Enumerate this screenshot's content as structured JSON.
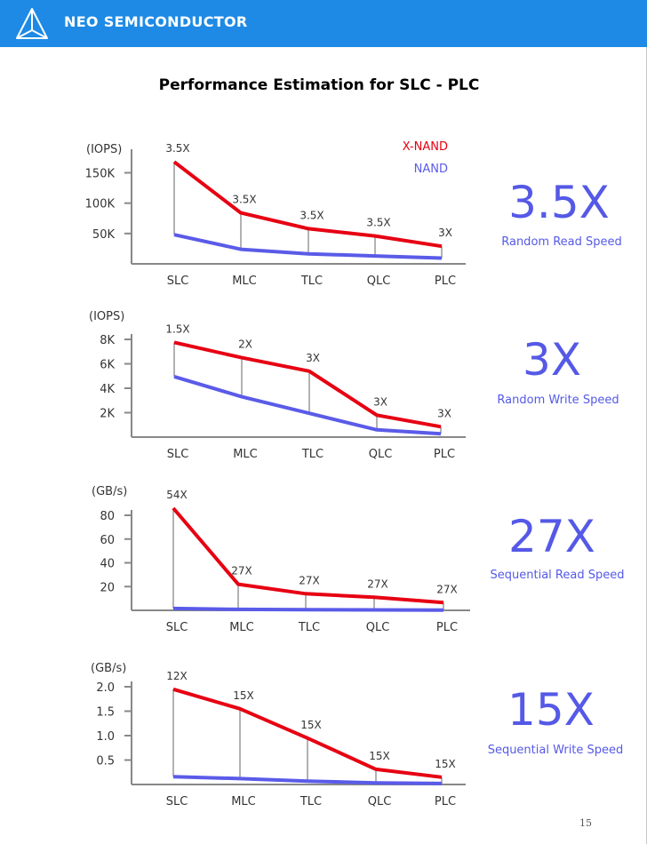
{
  "header": {
    "brand": "NEO SEMICONDUCTOR",
    "logo_icon": "pyramid-logo-icon",
    "background": "#1e8ae5"
  },
  "page_title": "Performance Estimation for SLC - PLC",
  "page_number": "15",
  "colors": {
    "xnand": "#e60012",
    "nand": "#5a5be8",
    "connector": "#999999",
    "highlight": "#5559e6"
  },
  "legend": {
    "xnand": "X-NAND",
    "nand": "NAND"
  },
  "charts": [
    {
      "factor": "3.5X",
      "metric": "Random Read Speed"
    },
    {
      "factor": "3X",
      "metric": "Random Write Speed"
    },
    {
      "factor": "27X",
      "metric": "Sequential Read Speed"
    },
    {
      "factor": "15X",
      "metric": "Sequential Write Speed"
    }
  ],
  "chart_data": [
    {
      "type": "line",
      "title": "Random Read Speed",
      "ylabel": "(IOPS)",
      "categories": [
        "SLC",
        "MLC",
        "TLC",
        "QLC",
        "PLC"
      ],
      "yticks": [
        "50K",
        "100K",
        "150K"
      ],
      "ytick_values": [
        50,
        100,
        150
      ],
      "ylim": [
        0,
        180
      ],
      "legend_position": "top-right",
      "series": [
        {
          "name": "X-NAND",
          "values": [
            168,
            84,
            58,
            46,
            29
          ]
        },
        {
          "name": "NAND",
          "values": [
            48,
            24,
            16.5,
            13,
            9.5
          ]
        }
      ],
      "ratios": [
        "3.5X",
        "3.5X",
        "3.5X",
        "3.5X",
        "3X"
      ]
    },
    {
      "type": "line",
      "title": "Random Write Speed",
      "ylabel": "(IOPS)",
      "categories": [
        "SLC",
        "MLC",
        "TLC",
        "QLC",
        "PLC"
      ],
      "yticks": [
        "2K",
        "4K",
        "6K",
        "8K"
      ],
      "ytick_values": [
        2,
        4,
        6,
        8
      ],
      "ylim": [
        0,
        8
      ],
      "series": [
        {
          "name": "X-NAND",
          "values": [
            7.75,
            6.5,
            5.4,
            1.8,
            0.85
          ]
        },
        {
          "name": "NAND",
          "values": [
            4.95,
            3.3,
            1.95,
            0.6,
            0.28
          ]
        }
      ],
      "ratios": [
        "1.5X",
        "2X",
        "3X",
        "3X",
        "3X"
      ]
    },
    {
      "type": "line",
      "title": "Sequential Read Speed",
      "ylabel": "(GB/s)",
      "categories": [
        "SLC",
        "MLC",
        "TLC",
        "QLC",
        "PLC"
      ],
      "yticks": [
        "20",
        "40",
        "60",
        "80"
      ],
      "ytick_values": [
        20,
        40,
        60,
        80
      ],
      "ylim": [
        0,
        80
      ],
      "series": [
        {
          "name": "X-NAND",
          "values": [
            86,
            22,
            14,
            11,
            6.5
          ]
        },
        {
          "name": "NAND",
          "values": [
            1.6,
            0.8,
            0.5,
            0.4,
            0.24
          ]
        }
      ],
      "ratios": [
        "54X",
        "27X",
        "27X",
        "27X",
        "27X"
      ]
    },
    {
      "type": "line",
      "title": "Sequential Write Speed",
      "ylabel": "(GB/s)",
      "categories": [
        "SLC",
        "MLC",
        "TLC",
        "QLC",
        "PLC"
      ],
      "yticks": [
        "0.5",
        "1.0",
        "1.5",
        "2.0"
      ],
      "ytick_values": [
        0.5,
        1.0,
        1.5,
        2.0
      ],
      "ylim": [
        0,
        2
      ],
      "series": [
        {
          "name": "X-NAND",
          "values": [
            1.95,
            1.55,
            0.95,
            0.31,
            0.15
          ]
        },
        {
          "name": "NAND",
          "values": [
            0.16,
            0.12,
            0.07,
            0.03,
            0.02
          ]
        }
      ],
      "ratios": [
        "12X",
        "15X",
        "15X",
        "15X",
        "15X"
      ]
    }
  ]
}
